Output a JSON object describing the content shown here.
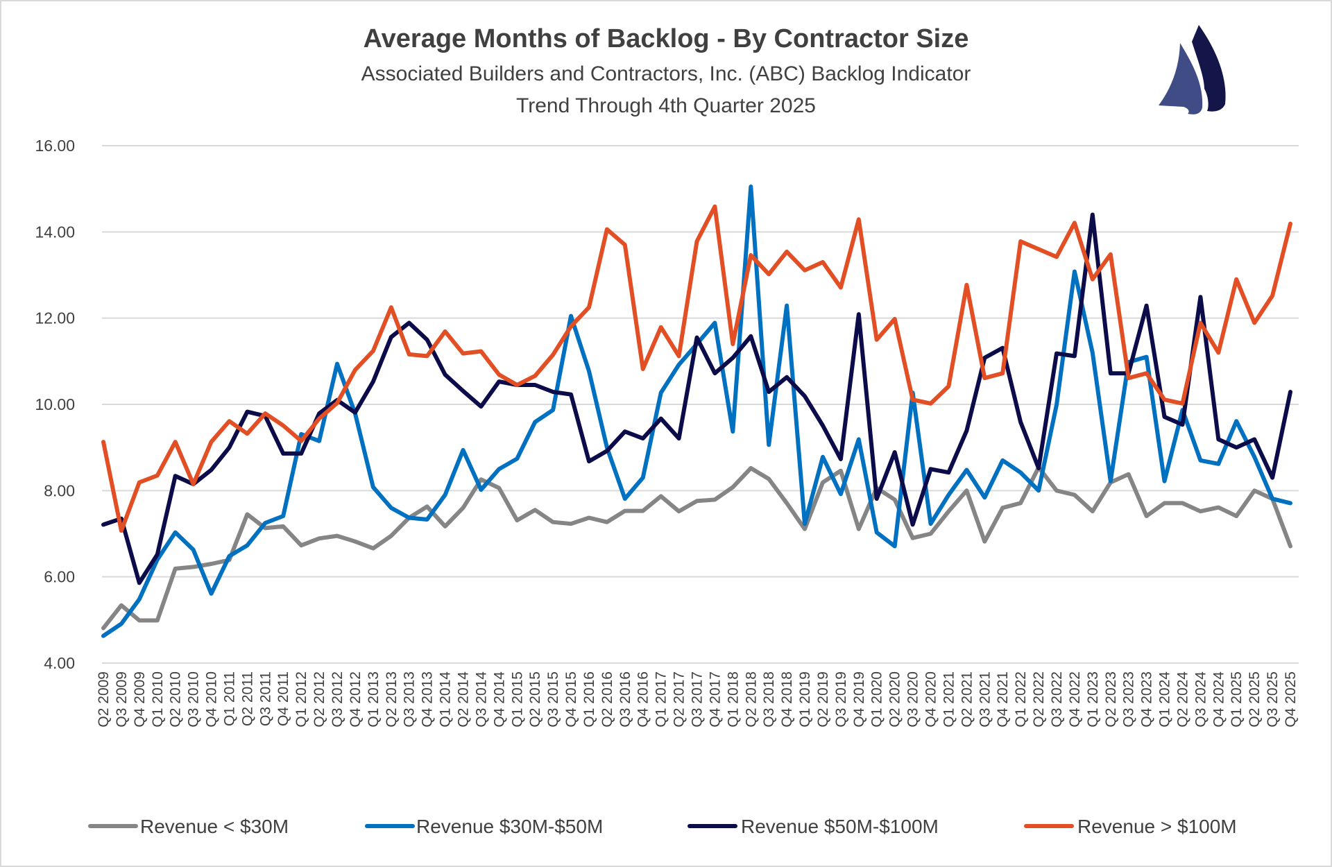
{
  "chart_data": {
    "type": "line",
    "title": "Average Months of Backlog - By Contractor Size",
    "subtitle": "Associated Builders and Contractors, Inc. (ABC) Backlog Indicator",
    "subtitle2": "Trend Through 4th Quarter 2025",
    "xlabel": "",
    "ylabel": "",
    "ylim": [
      4,
      16
    ],
    "yticks": [
      "4.00",
      "6.00",
      "8.00",
      "10.00",
      "12.00",
      "14.00",
      "16.00"
    ],
    "grid": true,
    "legend": "bottom",
    "categories": [
      "Q2 2009",
      "Q3 2009",
      "Q4 2009",
      "Q1 2010",
      "Q2 2010",
      "Q3 2010",
      "Q4 2010",
      "Q1 2011",
      "Q2 2011",
      "Q3 2011",
      "Q4 2011",
      "Q1 2012",
      "Q2 2012",
      "Q3 2012",
      "Q4 2012",
      "Q1 2013",
      "Q2 2013",
      "Q3 2013",
      "Q4 2013",
      "Q1 2014",
      "Q2 2014",
      "Q3 2014",
      "Q4 2014",
      "Q1 2015",
      "Q2 2015",
      "Q3 2015",
      "Q4 2015",
      "Q1 2016",
      "Q2 2016",
      "Q3 2016",
      "Q4 2016",
      "Q1 2017",
      "Q2 2017",
      "Q3 2017",
      "Q4 2017",
      "Q1 2018",
      "Q2 2018",
      "Q3 2018",
      "Q4 2018",
      "Q1 2019",
      "Q2 2019",
      "Q3 2019",
      "Q4 2019",
      "Q1 2020",
      "Q2 2020",
      "Q3 2020",
      "Q4 2020",
      "Q1 2021",
      "Q2 2021",
      "Q3 2021",
      "Q4 2021",
      "Q1 2022",
      "Q2 2022",
      "Q3 2022",
      "Q4 2022",
      "Q1 2023",
      "Q2 2023",
      "Q3 2023",
      "Q4 2023",
      "Q1 2024",
      "Q2 2024",
      "Q3 2024",
      "Q4 2024",
      "Q1 2025",
      "Q2 2025",
      "Q3 2025",
      "Q4 2025"
    ],
    "series": [
      {
        "name": "Revenue < $30M",
        "color": "#858585",
        "values": [
          4.81,
          5.34,
          4.99,
          4.99,
          6.19,
          6.23,
          6.3,
          6.39,
          7.45,
          7.13,
          7.17,
          6.73,
          6.89,
          6.95,
          6.82,
          6.66,
          6.95,
          7.37,
          7.63,
          7.17,
          7.6,
          8.26,
          8.06,
          7.31,
          7.55,
          7.27,
          7.23,
          7.37,
          7.27,
          7.53,
          7.53,
          7.87,
          7.52,
          7.76,
          7.79,
          8.08,
          8.52,
          8.27,
          7.71,
          7.11,
          8.19,
          8.46,
          7.11,
          8.06,
          7.79,
          6.9,
          7.0,
          7.52,
          8.0,
          6.82,
          7.6,
          7.71,
          8.54,
          8.0,
          7.9,
          7.52,
          8.19,
          8.38,
          7.41,
          7.71,
          7.71,
          7.52,
          7.61,
          7.41,
          8.0,
          7.81,
          6.71
        ]
      },
      {
        "name": "Revenue $30M-$50M",
        "color": "#0070c0",
        "values": [
          4.63,
          4.91,
          5.48,
          6.4,
          7.03,
          6.63,
          5.61,
          6.48,
          6.73,
          7.25,
          7.41,
          9.31,
          9.15,
          10.94,
          9.79,
          8.08,
          7.6,
          7.37,
          7.33,
          7.9,
          8.94,
          8.02,
          8.5,
          8.74,
          9.59,
          9.87,
          12.05,
          10.77,
          9.0,
          7.81,
          8.3,
          10.27,
          10.92,
          11.4,
          11.89,
          9.37,
          15.05,
          9.06,
          12.29,
          7.23,
          8.78,
          7.92,
          9.19,
          7.03,
          6.71,
          10.27,
          7.23,
          7.9,
          8.48,
          7.84,
          8.7,
          8.42,
          8.0,
          9.99,
          13.08,
          11.2,
          8.22,
          10.98,
          11.1,
          8.22,
          9.87,
          8.7,
          8.62,
          9.61,
          8.78,
          7.81,
          7.71
        ]
      },
      {
        "name": "Revenue $50M-$100M",
        "color": "#0c0c4a",
        "values": [
          7.21,
          7.35,
          5.86,
          6.52,
          8.34,
          8.15,
          8.48,
          9.0,
          9.83,
          9.73,
          8.86,
          8.86,
          9.79,
          10.1,
          9.81,
          10.53,
          11.56,
          11.89,
          11.5,
          10.69,
          10.31,
          9.95,
          10.53,
          10.45,
          10.45,
          10.29,
          10.23,
          8.68,
          8.92,
          9.37,
          9.21,
          9.67,
          9.21,
          11.55,
          10.72,
          11.08,
          11.58,
          10.29,
          10.63,
          10.19,
          9.51,
          8.73,
          12.09,
          7.81,
          8.89,
          7.21,
          8.5,
          8.42,
          9.39,
          11.08,
          11.31,
          9.59,
          8.52,
          11.18,
          11.12,
          14.4,
          10.72,
          10.72,
          12.29,
          9.71,
          9.53,
          12.49,
          9.19,
          9.0,
          9.19,
          8.3,
          10.29
        ]
      },
      {
        "name": "Revenue > $100M",
        "color": "#e34f25",
        "values": [
          9.13,
          7.07,
          8.19,
          8.35,
          9.13,
          8.15,
          9.13,
          9.61,
          9.32,
          9.79,
          9.51,
          9.15,
          9.67,
          10.03,
          10.8,
          11.24,
          12.25,
          11.16,
          11.12,
          11.69,
          11.18,
          11.23,
          10.69,
          10.45,
          10.66,
          11.15,
          11.81,
          12.25,
          14.06,
          13.7,
          10.82,
          11.79,
          11.12,
          13.78,
          14.59,
          11.4,
          13.46,
          13.02,
          13.54,
          13.11,
          13.3,
          12.71,
          14.29,
          11.5,
          11.98,
          10.11,
          10.02,
          10.42,
          12.77,
          10.61,
          10.72,
          13.78,
          13.6,
          13.42,
          14.21,
          12.9,
          13.48,
          10.61,
          10.72,
          10.11,
          10.02,
          11.89,
          11.2,
          12.9,
          11.89,
          12.52,
          14.19
        ]
      }
    ]
  },
  "logo": {
    "icon": "sailboat-logo",
    "colors": [
      "#3f4c86",
      "#14164a"
    ]
  }
}
